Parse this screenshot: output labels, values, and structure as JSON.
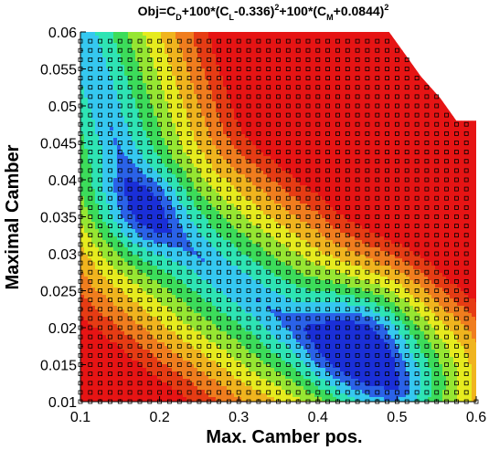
{
  "chart_data": {
    "type": "heatmap",
    "title": {
      "parts": [
        {
          "text": "Obj=C",
          "sub": false,
          "sup": false
        },
        {
          "text": "D",
          "sub": true,
          "sup": false
        },
        {
          "text": "+100*(C",
          "sub": false,
          "sup": false
        },
        {
          "text": "L",
          "sub": true,
          "sup": false
        },
        {
          "text": "-0.336)",
          "sub": false,
          "sup": false
        },
        {
          "text": "2",
          "sub": false,
          "sup": true
        },
        {
          "text": "+100*(C",
          "sub": false,
          "sup": false
        },
        {
          "text": "M",
          "sub": true,
          "sup": false
        },
        {
          "text": "+0.0844)",
          "sub": false,
          "sup": false
        },
        {
          "text": "2",
          "sub": false,
          "sup": true
        }
      ]
    },
    "xlabel": "Max. Camber pos.",
    "ylabel": "Maximal Camber",
    "xlim": [
      0.1,
      0.6
    ],
    "ylim": [
      0.01,
      0.06
    ],
    "xticks": [
      0.1,
      0.2,
      0.3,
      0.4,
      0.5,
      0.6
    ],
    "xtick_labels": [
      "0.1",
      "0.2",
      "0.3",
      "0.4",
      "0.5",
      "0.6"
    ],
    "yticks": [
      0.01,
      0.015,
      0.02,
      0.025,
      0.03,
      0.035,
      0.04,
      0.045,
      0.05,
      0.055,
      0.06
    ],
    "ytick_labels": [
      "0.01",
      "0.015",
      "0.02",
      "0.025",
      "0.03",
      "0.035",
      "0.04",
      "0.045",
      "0.05",
      "0.055",
      "0.06"
    ],
    "minima": [
      {
        "x": 0.45,
        "y": 0.017
      },
      {
        "x": 0.18,
        "y": 0.036
      }
    ],
    "low_valley_ridge": [
      {
        "x": 0.1,
        "y": 0.06
      },
      {
        "x": 0.16,
        "y": 0.04
      },
      {
        "x": 0.2,
        "y": 0.034
      },
      {
        "x": 0.28,
        "y": 0.027
      },
      {
        "x": 0.36,
        "y": 0.021
      },
      {
        "x": 0.45,
        "y": 0.017
      },
      {
        "x": 0.5,
        "y": 0.012
      }
    ],
    "undefined_region_top_right": [
      {
        "x": 0.49,
        "y": 0.06
      },
      {
        "x": 0.51,
        "y": 0.057
      },
      {
        "x": 0.53,
        "y": 0.054
      },
      {
        "x": 0.555,
        "y": 0.051
      },
      {
        "x": 0.575,
        "y": 0.048
      },
      {
        "x": 0.6,
        "y": 0.048
      }
    ],
    "sample_grid": {
      "x_start": 0.1,
      "x_step": 0.0125,
      "y_start": 0.01,
      "y_step": 0.00125
    },
    "colormap": [
      "#1a2fd8",
      "#2a62e8",
      "#35c8f0",
      "#2ee4b4",
      "#3cdc5a",
      "#96e632",
      "#e6eb1e",
      "#f0b41e",
      "#f07d1e",
      "#e63c14",
      "#e61414"
    ],
    "background": "#ffffff"
  }
}
